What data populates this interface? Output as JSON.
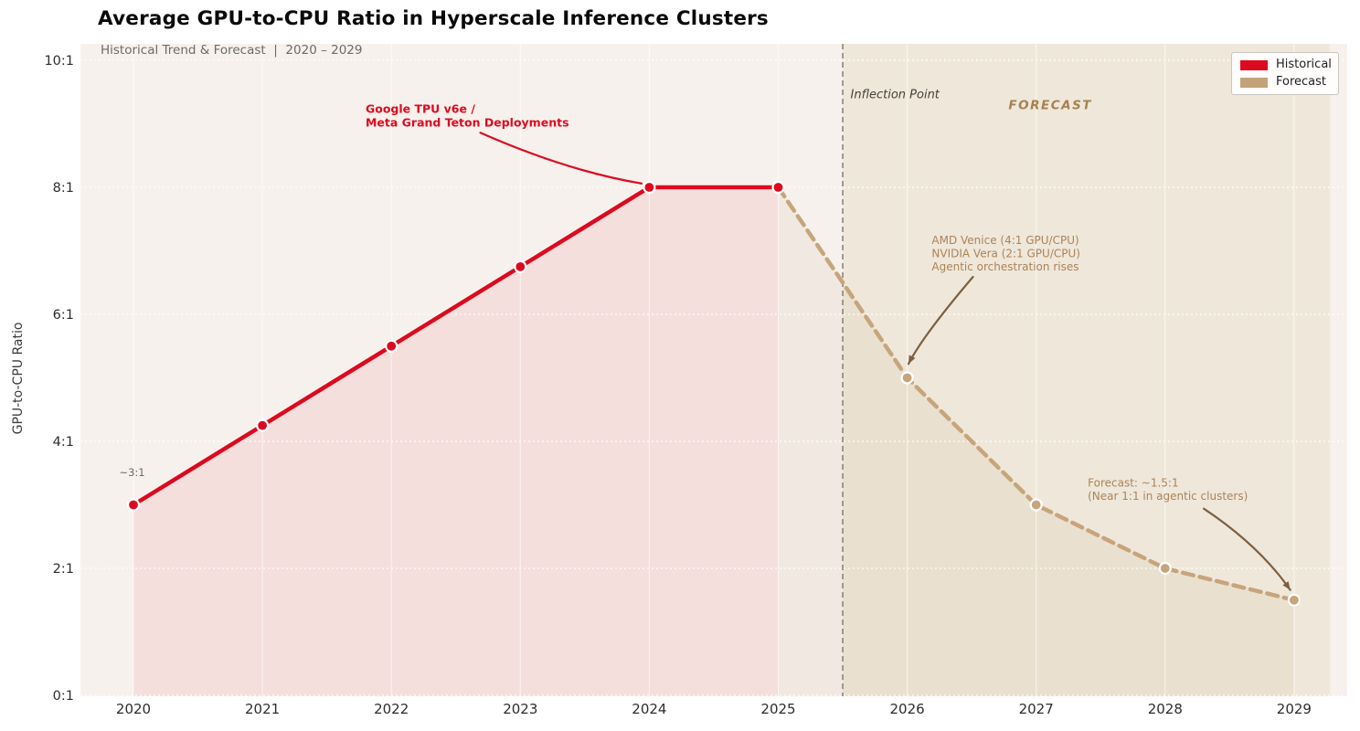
{
  "title": "Average GPU-to-CPU Ratio in Hyperscale Inference Clusters",
  "subtitle": "Historical Trend & Forecast  |  2020 – 2029",
  "legend": {
    "position": "upper right",
    "items": [
      {
        "label": "Historical",
        "color": "#dc0a1e"
      },
      {
        "label": "Forecast",
        "color": "#c3a27a"
      }
    ]
  },
  "chart_data": {
    "type": "line",
    "title": "Average GPU-to-CPU Ratio in Hyperscale Inference Clusters",
    "subtitle": "Historical Trend & Forecast  |  2020 – 2029",
    "xlabel": "",
    "ylabel": "GPU-to-CPU Ratio",
    "xlim": [
      2019.59,
      2029.41
    ],
    "ylim": [
      0,
      10.26
    ],
    "grid": "horizontal-dashed-white",
    "legend_position": "upper right",
    "colors": {
      "figure_bg": "#ffffff",
      "plot_bg": "#f7f1ed",
      "forecast_band": "#efe8da",
      "h_grid": "rgba(255,255,255,0.92)",
      "v_grid": "rgba(255,255,255,0.55)",
      "inflection_line": "#8f8a83",
      "tick_label": "#2d2d2d",
      "axis_label": "#3a3a3a"
    },
    "xticks": {
      "values": [
        2020,
        2021,
        2022,
        2023,
        2024,
        2025,
        2026,
        2027,
        2028,
        2029
      ],
      "labels": [
        "2020",
        "2021",
        "2022",
        "2023",
        "2024",
        "2025",
        "2026",
        "2027",
        "2028",
        "2029"
      ]
    },
    "yticks": {
      "values": [
        0,
        2,
        4,
        6,
        8,
        10
      ],
      "labels": [
        "0:1",
        "2:1",
        "4:1",
        "6:1",
        "8:1",
        "10:1"
      ]
    },
    "series": [
      {
        "name": "Historical",
        "line_style": "solid",
        "color": "#dc0a1e",
        "marker_edge": "#ffffff",
        "area_fill": "rgba(219,16,34,0.08)",
        "markers_from_index": 0,
        "x": [
          2020,
          2021,
          2022,
          2023,
          2024,
          2025
        ],
        "values": [
          3.0,
          4.25,
          5.5,
          6.75,
          8.0,
          8.0
        ]
      },
      {
        "name": "Forecast",
        "line_style": "dashed",
        "color": "#c6a57c",
        "marker_edge": "#ffffff",
        "area_fill": "rgba(170,128,74,0.07)",
        "markers_from_index": 1,
        "x": [
          2025,
          2026,
          2027,
          2028,
          2029
        ],
        "values": [
          8.0,
          5.0,
          3.0,
          2.0,
          1.5
        ]
      }
    ],
    "inflection_x": 2025.5,
    "forecast_band": {
      "from": 2025.5,
      "to": 2029.28
    },
    "annotations": [
      {
        "id": "tpu-deployments",
        "lines": [
          "Google TPU v6e /",
          "Meta Grand Teton Deployments"
        ],
        "color": "#dc0a1e",
        "weight": "bold",
        "style": "normal",
        "size": 12.5,
        "line_height": 15,
        "anchor": "start",
        "x": 2021.8,
        "y": 9.31,
        "arrow": {
          "color": "#dc0a1e",
          "from": [
            2022.69,
            8.86
          ],
          "ctrl": [
            2023.36,
            8.26
          ],
          "to": [
            2023.94,
            8.06
          ],
          "head": false
        }
      },
      {
        "id": "start-ratio",
        "lines": [
          "~3:1"
        ],
        "color": "#6e6a64",
        "weight": "normal",
        "style": "normal",
        "size": 11.5,
        "line_height": 14,
        "anchor": "start",
        "x": 2019.89,
        "y": 3.58
      },
      {
        "id": "inflection-label",
        "lines": [
          "Inflection Point"
        ],
        "color": "#454039",
        "weight": "normal",
        "style": "italic",
        "size": 13,
        "line_height": 16,
        "anchor": "start",
        "x": 2025.56,
        "y": 9.55
      },
      {
        "id": "forecast-zone-label",
        "lines": [
          "FORECAST"
        ],
        "color": "#a6814f",
        "weight": "bold",
        "style": "italic",
        "size": 13.5,
        "letter_spacing": 1.5,
        "line_height": 16,
        "anchor": "middle",
        "x": 2027.11,
        "y": 9.38
      },
      {
        "id": "amd-nvidia-note",
        "lines": [
          "AMD Venice (4:1 GPU/CPU)",
          "NVIDIA Vera (2:1 GPU/CPU)",
          "Agentic orchestration rises"
        ],
        "color": "#ab8258",
        "weight": "normal",
        "style": "normal",
        "size": 12,
        "line_height": 14.5,
        "anchor": "start",
        "x": 2026.19,
        "y": 7.24,
        "arrow": {
          "color": "#7d5f41",
          "from": [
            2026.51,
            6.59
          ],
          "ctrl": [
            2026.12,
            5.66
          ],
          "to": [
            2026.01,
            5.22
          ],
          "head": true
        }
      },
      {
        "id": "forecast-target-note",
        "lines": [
          "Forecast: ~1.5:1",
          "(Near 1:1 in agentic clusters)"
        ],
        "color": "#ab8258",
        "weight": "normal",
        "style": "normal",
        "size": 12,
        "line_height": 14.5,
        "anchor": "start",
        "x": 2027.4,
        "y": 3.42,
        "arrow": {
          "color": "#7d5f41",
          "from": [
            2028.3,
            2.94
          ],
          "ctrl": [
            2028.73,
            2.36
          ],
          "to": [
            2028.97,
            1.66
          ],
          "head": true
        }
      }
    ]
  }
}
